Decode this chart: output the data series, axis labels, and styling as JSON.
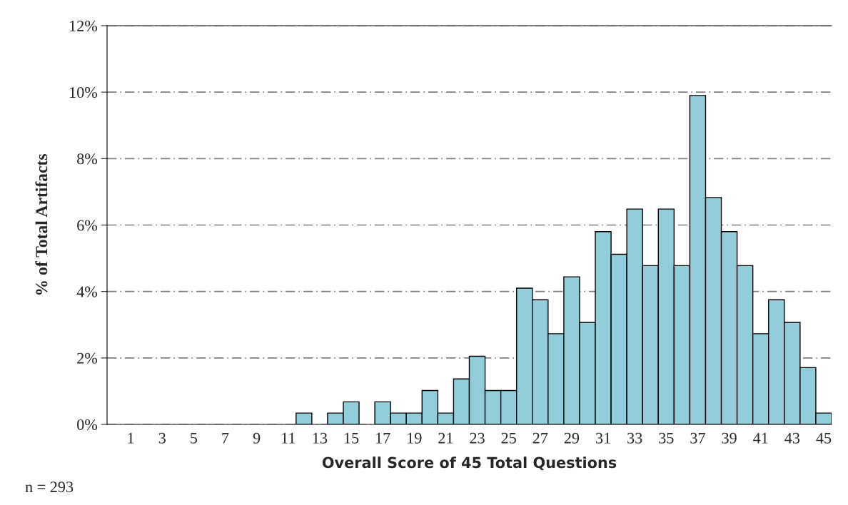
{
  "chart_data": {
    "type": "bar",
    "categories": [
      null,
      "1",
      null,
      "3",
      null,
      "5",
      null,
      "7",
      null,
      "9",
      null,
      "11",
      null,
      "13",
      null,
      "15",
      null,
      "17",
      null,
      "19",
      null,
      "21",
      null,
      "23",
      null,
      "25",
      null,
      "27",
      null,
      "29",
      null,
      "31",
      null,
      "33",
      null,
      "35",
      null,
      "37",
      null,
      "39",
      null,
      "41",
      null,
      "43",
      null,
      "45"
    ],
    "values": [
      0,
      0,
      0,
      0,
      0,
      0,
      0,
      0,
      0,
      0,
      0,
      0,
      0.34,
      0,
      0.34,
      0.68,
      0,
      0.68,
      0.34,
      0.34,
      1.02,
      0.34,
      1.37,
      2.05,
      1.02,
      1.02,
      4.1,
      3.75,
      2.73,
      4.44,
      3.07,
      5.8,
      5.12,
      6.48,
      4.78,
      6.48,
      4.78,
      9.9,
      6.83,
      5.8,
      4.78,
      2.73,
      3.75,
      3.07,
      1.71,
      0.34
    ],
    "color": "#92cddc",
    "xlabel": "Overall Score of 45 Total Questions",
    "ylabel": "% of Total Artifacts",
    "ylim": [
      0,
      12
    ],
    "yticks": [
      {
        "value": 0,
        "label": "0%"
      },
      {
        "value": 2,
        "label": "2%"
      },
      {
        "value": 4,
        "label": "4%"
      },
      {
        "value": 6,
        "label": "6%"
      },
      {
        "value": 8,
        "label": "8%"
      },
      {
        "value": 10,
        "label": "10%"
      },
      {
        "value": 12,
        "label": "12%"
      }
    ],
    "grid": "y",
    "annotations": [
      "n = 293"
    ]
  }
}
